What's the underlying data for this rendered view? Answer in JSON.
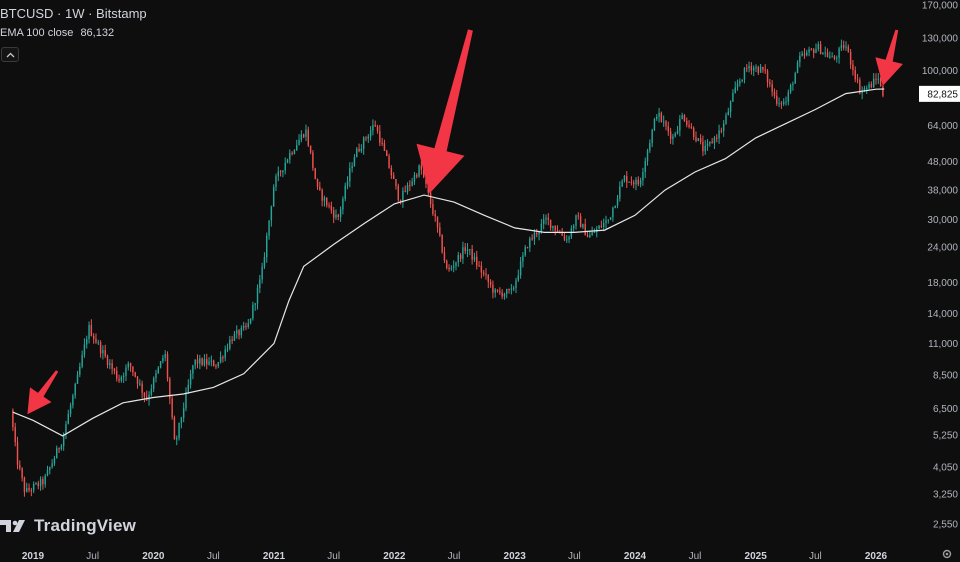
{
  "header": {
    "symbol_line": "BTCUSD · 1W · Bitstamp",
    "indicator_name": "EMA 100 close",
    "indicator_value": "86,132"
  },
  "brand": {
    "name": "TradingView",
    "logo": "tradingview-logo-icon"
  },
  "icons": {
    "collapse": "chevron-up-icon",
    "settings": "gear-icon"
  },
  "colors": {
    "background": "#0e0e0e",
    "up": "#26a69a",
    "down": "#ef5350",
    "ema": "#e6e6e6",
    "arrow": "#f23645",
    "price_label_bg": "#ffffff"
  },
  "chart_data": {
    "type": "candlestick",
    "symbol": "BTCUSD",
    "interval": "1W",
    "exchange": "Bitstamp",
    "y_scale": "log",
    "y_ticks": [
      {
        "label": "170,000",
        "value": 170000
      },
      {
        "label": "130,000",
        "value": 130000
      },
      {
        "label": "100,000",
        "value": 100000
      },
      {
        "label": "64,000",
        "value": 64000
      },
      {
        "label": "48,000",
        "value": 48000
      },
      {
        "label": "38,000",
        "value": 38000
      },
      {
        "label": "30,000",
        "value": 30000
      },
      {
        "label": "24,000",
        "value": 24000
      },
      {
        "label": "18,000",
        "value": 18000
      },
      {
        "label": "14,000",
        "value": 14000
      },
      {
        "label": "11,000",
        "value": 11000
      },
      {
        "label": "8,500",
        "value": 8500
      },
      {
        "label": "6,500",
        "value": 6500
      },
      {
        "label": "5,250",
        "value": 5250
      },
      {
        "label": "4,050",
        "value": 4050
      },
      {
        "label": "3,250",
        "value": 3250
      },
      {
        "label": "2,550",
        "value": 2550
      }
    ],
    "current_price": {
      "label": "82,825",
      "value": 82825
    },
    "x_ticks": [
      {
        "label": "2019",
        "date": "2019-01-01",
        "bold": true
      },
      {
        "label": "Jul",
        "date": "2019-07-01",
        "bold": false
      },
      {
        "label": "2020",
        "date": "2020-01-01",
        "bold": true
      },
      {
        "label": "Jul",
        "date": "2020-07-01",
        "bold": false
      },
      {
        "label": "2021",
        "date": "2021-01-01",
        "bold": true
      },
      {
        "label": "Jul",
        "date": "2021-07-01",
        "bold": false
      },
      {
        "label": "2022",
        "date": "2022-01-01",
        "bold": true
      },
      {
        "label": "Jul",
        "date": "2022-07-01",
        "bold": false
      },
      {
        "label": "2023",
        "date": "2023-01-01",
        "bold": true
      },
      {
        "label": "Jul",
        "date": "2023-07-01",
        "bold": false
      },
      {
        "label": "2024",
        "date": "2024-01-01",
        "bold": true
      },
      {
        "label": "Jul",
        "date": "2024-07-01",
        "bold": false
      },
      {
        "label": "2025",
        "date": "2025-01-01",
        "bold": true
      },
      {
        "label": "Jul",
        "date": "2025-07-01",
        "bold": false
      },
      {
        "label": "2026",
        "date": "2026-01-01",
        "bold": true
      }
    ],
    "price_path": [
      [
        "2018-11-01",
        6400
      ],
      [
        "2018-11-20",
        4300
      ],
      [
        "2018-12-15",
        3300
      ],
      [
        "2019-02-10",
        3600
      ],
      [
        "2019-04-05",
        5000
      ],
      [
        "2019-05-20",
        8000
      ],
      [
        "2019-06-26",
        12500
      ],
      [
        "2019-08-01",
        10500
      ],
      [
        "2019-09-25",
        8200
      ],
      [
        "2019-10-28",
        9300
      ],
      [
        "2019-12-18",
        7000
      ],
      [
        "2020-02-12",
        10200
      ],
      [
        "2020-03-13",
        4800
      ],
      [
        "2020-05-10",
        9500
      ],
      [
        "2020-07-20",
        9300
      ],
      [
        "2020-09-01",
        11500
      ],
      [
        "2020-10-20",
        12500
      ],
      [
        "2020-12-01",
        19000
      ],
      [
        "2021-01-08",
        40000
      ],
      [
        "2021-02-20",
        50000
      ],
      [
        "2021-04-14",
        62000
      ],
      [
        "2021-05-20",
        38000
      ],
      [
        "2021-07-20",
        30000
      ],
      [
        "2021-09-07",
        50000
      ],
      [
        "2021-11-10",
        65000
      ],
      [
        "2021-12-20",
        47000
      ],
      [
        "2022-01-24",
        35000
      ],
      [
        "2022-03-28",
        46000
      ],
      [
        "2022-05-15",
        29000
      ],
      [
        "2022-06-18",
        19500
      ],
      [
        "2022-08-14",
        24000
      ],
      [
        "2022-11-10",
        16500
      ],
      [
        "2022-12-30",
        16600
      ],
      [
        "2023-02-15",
        24500
      ],
      [
        "2023-04-14",
        30000
      ],
      [
        "2023-06-15",
        25500
      ],
      [
        "2023-07-15",
        30500
      ],
      [
        "2023-08-20",
        26000
      ],
      [
        "2023-10-20",
        30000
      ],
      [
        "2023-12-05",
        42000
      ],
      [
        "2024-01-20",
        40000
      ],
      [
        "2024-03-14",
        71000
      ],
      [
        "2024-05-01",
        58000
      ],
      [
        "2024-06-01",
        70000
      ],
      [
        "2024-08-05",
        52000
      ],
      [
        "2024-09-30",
        63000
      ],
      [
        "2024-11-12",
        89000
      ],
      [
        "2024-12-17",
        104000
      ],
      [
        "2025-02-01",
        100000
      ],
      [
        "2025-03-10",
        79000
      ],
      [
        "2025-04-09",
        77000
      ],
      [
        "2025-05-22",
        110000
      ],
      [
        "2025-07-14",
        121000
      ],
      [
        "2025-09-01",
        109000
      ],
      [
        "2025-10-06",
        124000
      ],
      [
        "2025-11-21",
        85000
      ],
      [
        "2025-12-20",
        88000
      ],
      [
        "2026-01-15",
        95000
      ],
      [
        "2026-01-26",
        82825
      ]
    ],
    "ema_100": {
      "name": "EMA 100 close",
      "value": 86132,
      "path": [
        [
          "2018-11-01",
          6300
        ],
        [
          "2019-01-01",
          5900
        ],
        [
          "2019-04-01",
          5200
        ],
        [
          "2019-07-01",
          6000
        ],
        [
          "2019-10-01",
          6800
        ],
        [
          "2020-01-01",
          7100
        ],
        [
          "2020-04-01",
          7300
        ],
        [
          "2020-07-01",
          7700
        ],
        [
          "2020-10-01",
          8600
        ],
        [
          "2021-01-01",
          11000
        ],
        [
          "2021-02-15",
          15500
        ],
        [
          "2021-04-01",
          20500
        ],
        [
          "2021-07-01",
          24500
        ],
        [
          "2021-10-01",
          29000
        ],
        [
          "2022-01-01",
          34000
        ],
        [
          "2022-04-01",
          36500
        ],
        [
          "2022-07-01",
          34500
        ],
        [
          "2022-10-01",
          31000
        ],
        [
          "2023-01-01",
          28000
        ],
        [
          "2023-04-01",
          27000
        ],
        [
          "2023-07-01",
          27000
        ],
        [
          "2023-10-01",
          27500
        ],
        [
          "2024-01-01",
          31000
        ],
        [
          "2024-04-01",
          38000
        ],
        [
          "2024-07-01",
          44000
        ],
        [
          "2024-10-01",
          49000
        ],
        [
          "2025-01-01",
          58000
        ],
        [
          "2025-04-01",
          65000
        ],
        [
          "2025-07-01",
          73000
        ],
        [
          "2025-10-01",
          83000
        ],
        [
          "2026-01-01",
          86000
        ],
        [
          "2026-01-26",
          86132
        ]
      ]
    },
    "annotations": [
      {
        "type": "arrow",
        "target_date": "2018-12-15",
        "target_price": 6200,
        "from_date": "2019-03-15",
        "from_price": 8800
      },
      {
        "type": "arrow",
        "target_date": "2022-04-18",
        "target_price": 37000,
        "from_date": "2022-08-20",
        "from_price": 140000
      },
      {
        "type": "arrow",
        "target_date": "2026-01-22",
        "target_price": 88500,
        "from_date": "2026-03-05",
        "from_price": 150000
      }
    ]
  }
}
